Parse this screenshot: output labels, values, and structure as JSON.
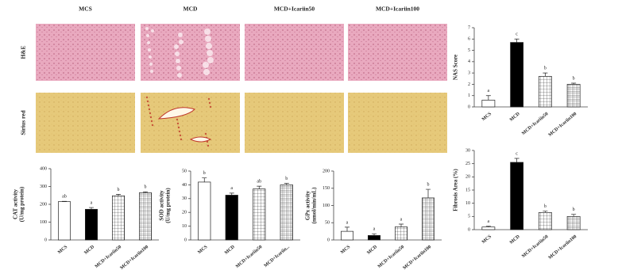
{
  "histology": {
    "columns": [
      "MCS",
      "MCD",
      "MCD+Icariin50",
      "MCD+Icariin100"
    ],
    "rows": [
      "H&E",
      "Sirius red"
    ]
  },
  "chart_data": [
    {
      "type": "bar",
      "ylabel": [
        "NAS Score"
      ],
      "categories": [
        "MCS",
        "MCD",
        "MCD+Icariin50",
        "MCD+Icariin100"
      ],
      "values": [
        0.6,
        5.7,
        2.7,
        2.0
      ],
      "errors": [
        0.4,
        0.3,
        0.3,
        0.1
      ],
      "annotations": [
        "a",
        "c",
        "b",
        "b"
      ],
      "colors": [
        "#ffffff",
        "#000000",
        "#ffffff",
        "#ffffff"
      ],
      "hatch": [
        null,
        null,
        "grid",
        "dense-grid"
      ],
      "ylim": [
        0,
        7
      ],
      "yticks": [
        0,
        1,
        2,
        3,
        4,
        5,
        6,
        7
      ]
    },
    {
      "type": "bar",
      "ylabel": [
        "Fibrosis Area (%)"
      ],
      "categories": [
        "MCS",
        "MCD",
        "MCD+Icariin50",
        "MCD+Icariin100"
      ],
      "values": [
        1,
        25.5,
        6.5,
        5
      ],
      "errors": [
        0.3,
        1.5,
        0.5,
        0.8
      ],
      "annotations": [
        "a",
        "c",
        "b",
        "b"
      ],
      "colors": [
        "#ffffff",
        "#000000",
        "#ffffff",
        "#ffffff"
      ],
      "hatch": [
        null,
        null,
        "grid",
        "dense-grid"
      ],
      "ylim": [
        0,
        30
      ],
      "yticks": [
        0,
        5,
        10,
        15,
        20,
        25,
        30
      ]
    },
    {
      "type": "bar",
      "ylabel": [
        "CAT activity",
        "(U/mg protein)"
      ],
      "categories": [
        "MCS",
        "MCD",
        "MCD+Icariin50",
        "MCD+Icariin100"
      ],
      "values": [
        215,
        172,
        248,
        265
      ],
      "errors": [
        2,
        10,
        8,
        5
      ],
      "annotations": [
        "ab",
        "a",
        "b",
        "b"
      ],
      "colors": [
        "#ffffff",
        "#000000",
        "#ffffff",
        "#ffffff"
      ],
      "hatch": [
        null,
        null,
        "grid",
        "dense-grid"
      ],
      "ylim": [
        0,
        400
      ],
      "yticks": [
        0,
        100,
        200,
        300,
        400
      ]
    },
    {
      "type": "bar",
      "ylabel": [
        "SOD activity",
        "(U/mg protein)"
      ],
      "categories": [
        "MCS",
        "MCD",
        "MCD+Icariin50",
        "MCD+Icariin..."
      ],
      "values": [
        42,
        32.5,
        37,
        40
      ],
      "errors": [
        3,
        1.5,
        2,
        1
      ],
      "annotations": [
        "b",
        "a",
        "ab",
        "b"
      ],
      "colors": [
        "#ffffff",
        "#000000",
        "#ffffff",
        "#ffffff"
      ],
      "hatch": [
        null,
        null,
        "grid",
        "dense-grid"
      ],
      "ylim": [
        0,
        50
      ],
      "yticks": [
        0,
        10,
        20,
        30,
        40,
        50
      ]
    },
    {
      "type": "bar",
      "ylabel": [
        "GPx activity",
        "(nmol/min/mL)"
      ],
      "categories": [
        "MCS",
        "MCD",
        "MCD+Icariin50",
        "MCD+Icariin100"
      ],
      "values": [
        25,
        13,
        38,
        122
      ],
      "errors": [
        12,
        5,
        8,
        25
      ],
      "annotations": [
        "a",
        "a",
        "a",
        "b"
      ],
      "colors": [
        "#ffffff",
        "#000000",
        "#ffffff",
        "#ffffff"
      ],
      "hatch": [
        null,
        null,
        "grid",
        "dense-grid"
      ],
      "ylim": [
        0,
        200
      ],
      "yticks": [
        0,
        50,
        100,
        150,
        200
      ]
    }
  ]
}
